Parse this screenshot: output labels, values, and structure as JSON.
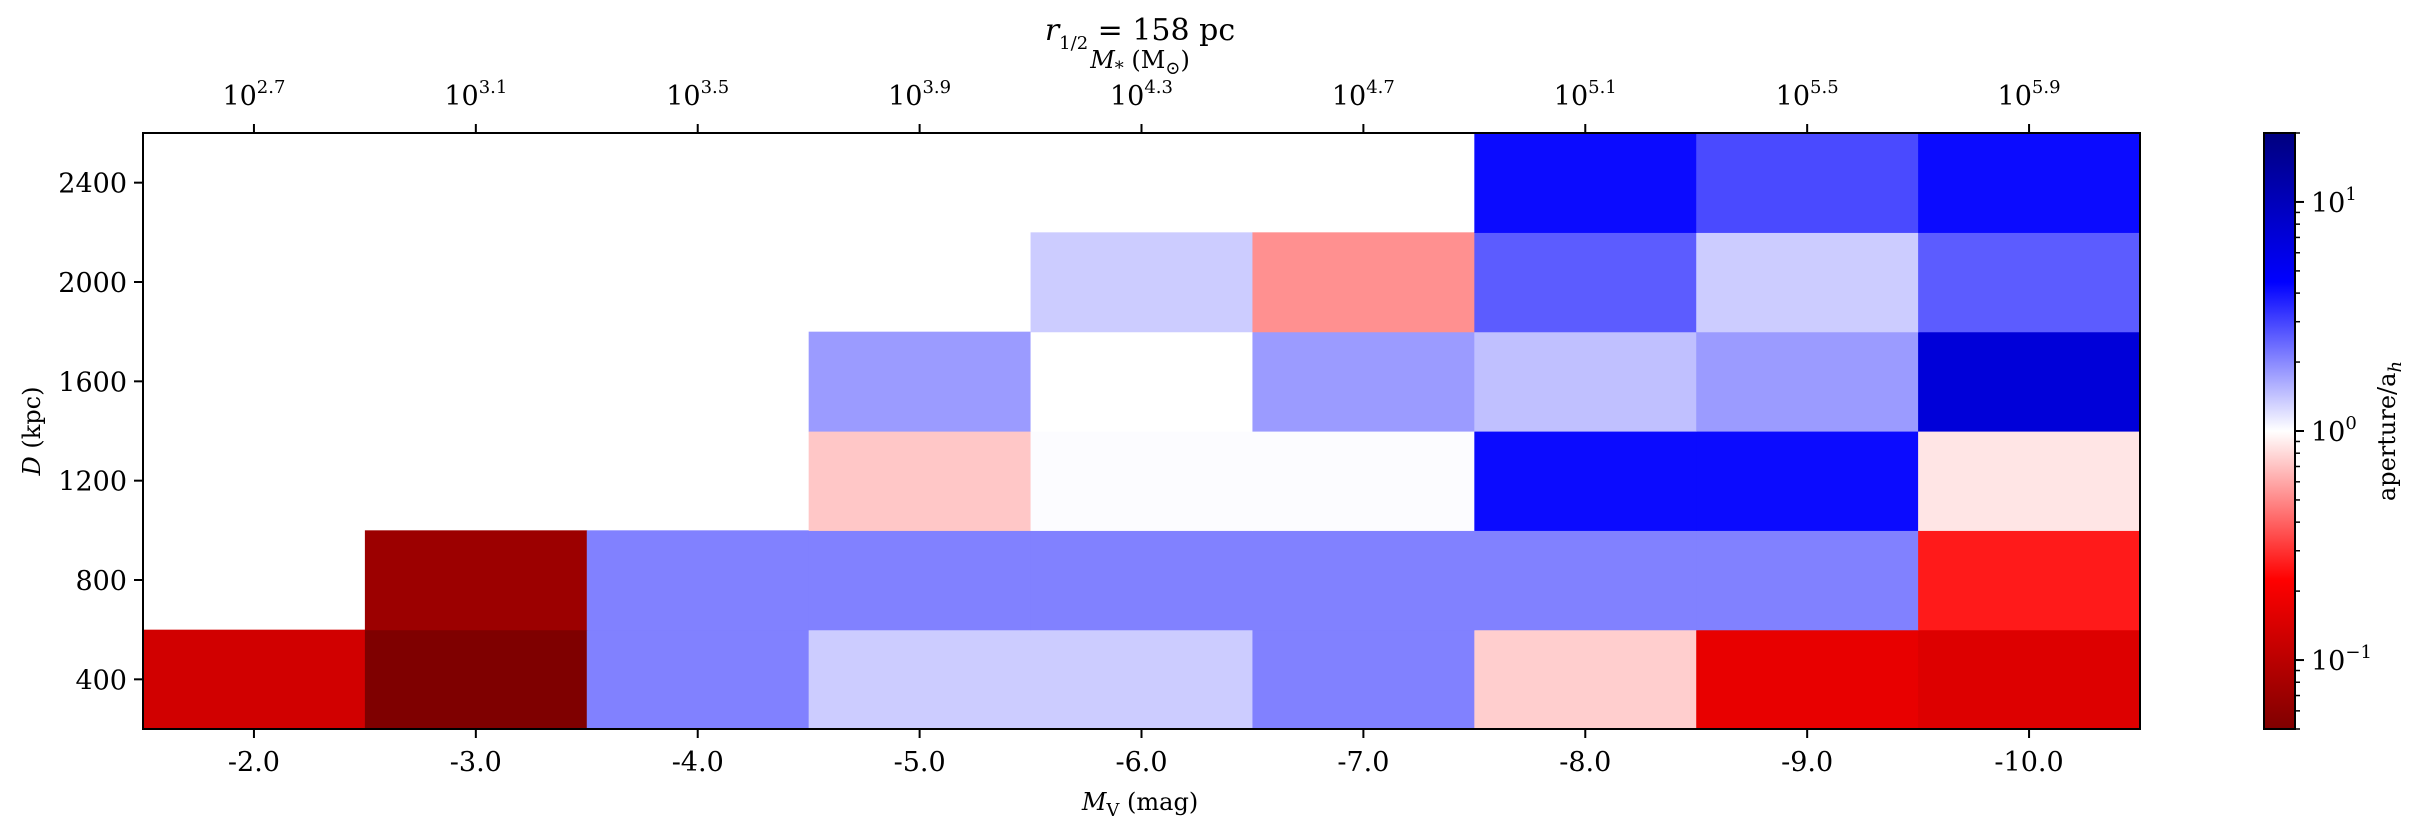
{
  "chart_data": {
    "type": "heatmap",
    "title": "r1/2 = 158 pc",
    "title_parts": {
      "r": "r",
      "sub": "1/2",
      "rest": " = 158 pc"
    },
    "xlabel": "M_V (mag)",
    "xlabel_parts": {
      "m": "M",
      "sub": "V",
      "rest": " (mag)"
    },
    "x2label": "M_* (M_⊙)",
    "x2label_parts": {
      "m": "M",
      "sub": "*",
      "rest": " (M",
      "rest_sub": "⊙",
      "close": ")"
    },
    "ylabel": "D (kpc)",
    "ylabel_parts": {
      "d": "D",
      "rest": " (kpc)"
    },
    "colorbar_label": "aperture/a_h",
    "colorbar_label_parts": {
      "main": "aperture/a",
      "sub": "h"
    },
    "colorbar_scale": "log",
    "colorbar_range": [
      0.05,
      20
    ],
    "colorbar_ticks": [
      {
        "base": "10",
        "exp": "1",
        "value": 10
      },
      {
        "base": "10",
        "exp": "0",
        "value": 1
      },
      {
        "base": "10",
        "exp": "−1",
        "value": 0.1
      }
    ],
    "colormap": [
      "#7f0000",
      "#ff0000",
      "#ffffff",
      "#0000ff",
      "#00007f"
    ],
    "x_categories": [
      "-2.0",
      "-3.0",
      "-4.0",
      "-5.0",
      "-6.0",
      "-7.0",
      "-8.0",
      "-9.0",
      "-10.0"
    ],
    "x2_ticks": [
      {
        "base": "10",
        "exp": "2.7"
      },
      {
        "base": "10",
        "exp": "3.1"
      },
      {
        "base": "10",
        "exp": "3.5"
      },
      {
        "base": "10",
        "exp": "3.9"
      },
      {
        "base": "10",
        "exp": "4.3"
      },
      {
        "base": "10",
        "exp": "4.7"
      },
      {
        "base": "10",
        "exp": "5.1"
      },
      {
        "base": "10",
        "exp": "5.5"
      },
      {
        "base": "10",
        "exp": "5.9"
      }
    ],
    "y_categories": [
      "400",
      "800",
      "1200",
      "1600",
      "2000",
      "2400"
    ],
    "grid": false,
    "values": [
      [
        0.13,
        0.05,
        2.1,
        1.35,
        1.35,
        2.1,
        0.75,
        0.17,
        0.15
      ],
      [
        null,
        0.07,
        2.1,
        2.1,
        2.1,
        2.1,
        2.1,
        2.1,
        0.26
      ],
      [
        null,
        null,
        null,
        0.72,
        1.02,
        1.02,
        4.2,
        4.2,
        0.86
      ],
      [
        null,
        null,
        null,
        1.8,
        1.0,
        1.8,
        1.45,
        1.8,
        7.0
      ],
      [
        null,
        null,
        null,
        null,
        1.35,
        0.52,
        2.6,
        1.35,
        2.6
      ],
      [
        null,
        null,
        null,
        null,
        null,
        null,
        4.2,
        2.9,
        4.2
      ]
    ]
  }
}
